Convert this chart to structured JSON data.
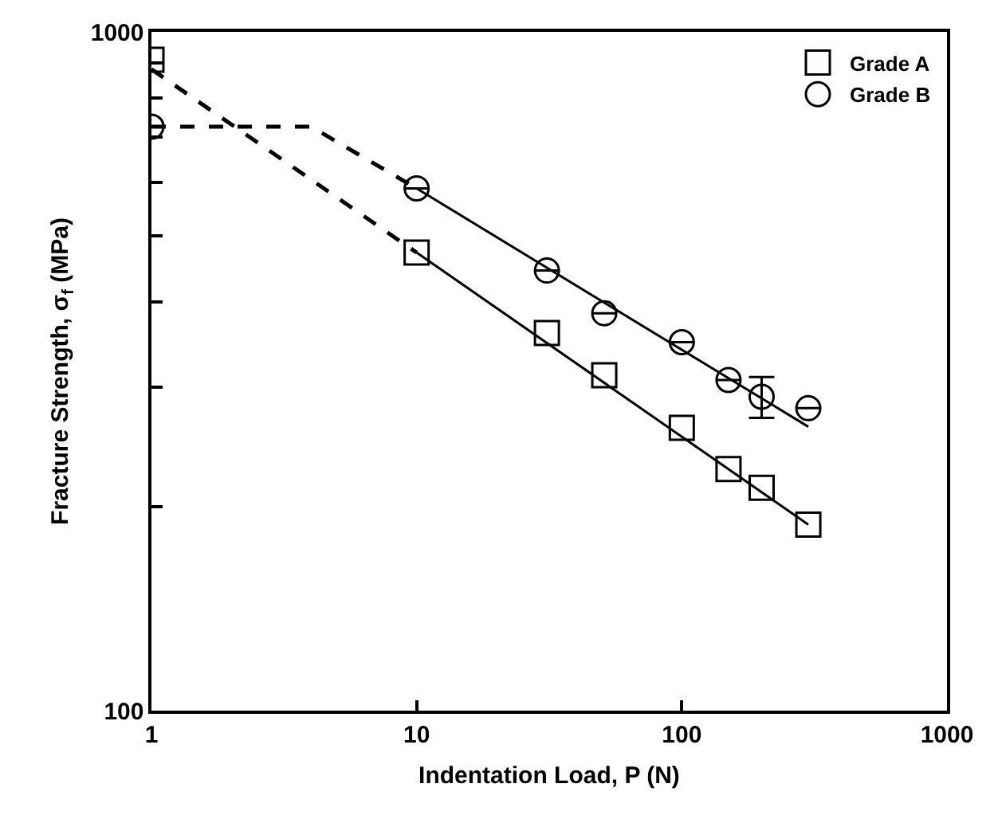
{
  "chart_data": {
    "type": "scatter",
    "xlabel": "Indentation Load, P (N)",
    "ylabel": "Fracture Strength, σ$_{f}$ (MPa)",
    "log": "xy",
    "legend": "top right",
    "xlim": [
      1,
      1000
    ],
    "xticks": [
      1,
      10,
      100,
      1000
    ],
    "ylim": [
      100,
      1000
    ],
    "yticks": [
      100,
      {
        "value": 200,
        "label": null
      },
      {
        "value": 300,
        "label": null
      },
      {
        "value": 400,
        "label": null
      },
      {
        "value": 500,
        "label": null
      },
      {
        "value": 600,
        "label": null
      },
      {
        "value": 700,
        "label": null
      },
      {
        "value": 800,
        "label": null
      },
      {
        "value": 900,
        "label": null
      },
      1000
    ],
    "series": [
      {
        "name": "Grade A",
        "color": "#000000",
        "marker": "square",
        "x": [
          1,
          10,
          31,
          51,
          100,
          150,
          200,
          300
        ],
        "values": [
          910,
          473,
          360,
          312,
          261,
          227,
          213,
          188
        ]
      },
      {
        "name": "Grade B",
        "color": "#000000",
        "marker": "circle",
        "x": [
          1,
          10,
          31,
          51,
          100,
          150,
          200,
          300
        ],
        "values": [
          725,
          588,
          445,
          385,
          349,
          307,
          290,
          279
        ],
        "errors": [
          null,
          null,
          null,
          null,
          null,
          null,
          [
            270,
            310
          ],
          null
        ]
      },
      {
        "type": "line",
        "color": "#000000",
        "line_style": "dashed",
        "marker": "none",
        "x": [
          1,
          10
        ],
        "values": [
          881,
          473
        ]
      },
      {
        "type": "line",
        "color": "#000000",
        "line_style": "solid",
        "marker": "none",
        "x": [
          10,
          300
        ],
        "values": [
          473,
          188
        ]
      },
      {
        "type": "line",
        "color": "#000000",
        "line_style": "dashed",
        "marker": "none",
        "x": [
          1,
          4,
          10
        ],
        "values": [
          725,
          725,
          588
        ]
      },
      {
        "type": "line",
        "color": "#000000",
        "line_style": "solid",
        "marker": "none",
        "x": [
          10,
          300
        ],
        "values": [
          588,
          262
        ]
      }
    ]
  }
}
